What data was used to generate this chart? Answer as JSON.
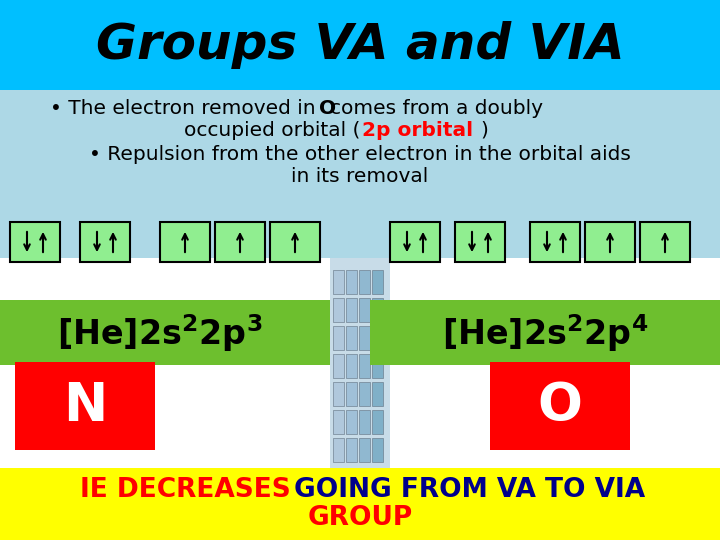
{
  "title": "Groups VA and VIA",
  "title_bg": "#00BFFF",
  "title_color": "#000000",
  "bullet_bg": "#ADD8E6",
  "config_left": "[He]2s$^2$2p$^3$",
  "config_right": "[He]2s$^2$2p$^4$",
  "config_bg": "#6DBF2E",
  "N_label": "N",
  "O_label": "O",
  "element_bg": "#FF0000",
  "element_color": "#FFFFFF",
  "bottom_bg": "#FFFF00",
  "bottom_ie": "IE DECREASES",
  "bottom_ie_color": "#FF0000",
  "bottom_going": "GOING FROM VA TO VIA",
  "bottom_group": "GROUP",
  "bottom_blue": "#00008B",
  "bottom_red": "#FF0000",
  "orbital_box_color": "#90EE90",
  "orbital_border": "#000000",
  "white_bg": "#FFFFFF"
}
